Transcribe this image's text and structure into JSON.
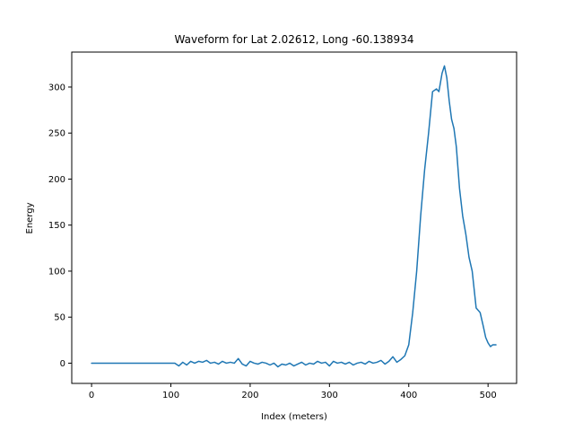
{
  "chart_data": {
    "type": "line",
    "title": "Waveform for Lat 2.02612, Long -60.138934",
    "xlabel": "Index (meters)",
    "ylabel": "Energy",
    "xlim": [
      -25,
      536
    ],
    "ylim": [
      -22,
      338
    ],
    "xticks": [
      0,
      100,
      200,
      300,
      400,
      500
    ],
    "yticks": [
      0,
      50,
      100,
      150,
      200,
      250,
      300
    ],
    "grid": false,
    "line_color": "#1f77b4",
    "series": [
      {
        "x": [
          0,
          20,
          40,
          60,
          80,
          100,
          105,
          110,
          115,
          120,
          125,
          130,
          135,
          140,
          145,
          150,
          155,
          160,
          165,
          170,
          175,
          180,
          185,
          190,
          195,
          200,
          205,
          210,
          215,
          220,
          225,
          230,
          235,
          240,
          245,
          250,
          255,
          260,
          265,
          270,
          275,
          280,
          285,
          290,
          295,
          300,
          305,
          310,
          315,
          320,
          325,
          330,
          335,
          340,
          345,
          350,
          355,
          360,
          365,
          370,
          375,
          380,
          385,
          390,
          395,
          400,
          405,
          410,
          415,
          420,
          425,
          430,
          435,
          438,
          442,
          445,
          448,
          451,
          454,
          457,
          460,
          464,
          468,
          472,
          476,
          480,
          485,
          490,
          494,
          497,
          500,
          503,
          506,
          510
        ],
        "values": [
          0,
          0,
          0,
          0,
          0,
          0,
          0,
          -3,
          1,
          -2,
          2,
          0,
          2,
          1,
          3,
          0,
          1,
          -1,
          2,
          0,
          1,
          0,
          5,
          -1,
          -3,
          2,
          0,
          -1,
          1,
          0,
          -2,
          0,
          -4,
          -1,
          -2,
          0,
          -3,
          -1,
          1,
          -2,
          0,
          -1,
          2,
          0,
          1,
          -3,
          2,
          0,
          1,
          -1,
          1,
          -2,
          0,
          1,
          -1,
          2,
          0,
          1,
          3,
          -1,
          2,
          7,
          1,
          4,
          8,
          20,
          55,
          100,
          160,
          210,
          250,
          295,
          298,
          295,
          315,
          323,
          310,
          285,
          265,
          255,
          235,
          190,
          160,
          140,
          115,
          100,
          60,
          55,
          40,
          28,
          22,
          18,
          20,
          20
        ]
      }
    ]
  }
}
